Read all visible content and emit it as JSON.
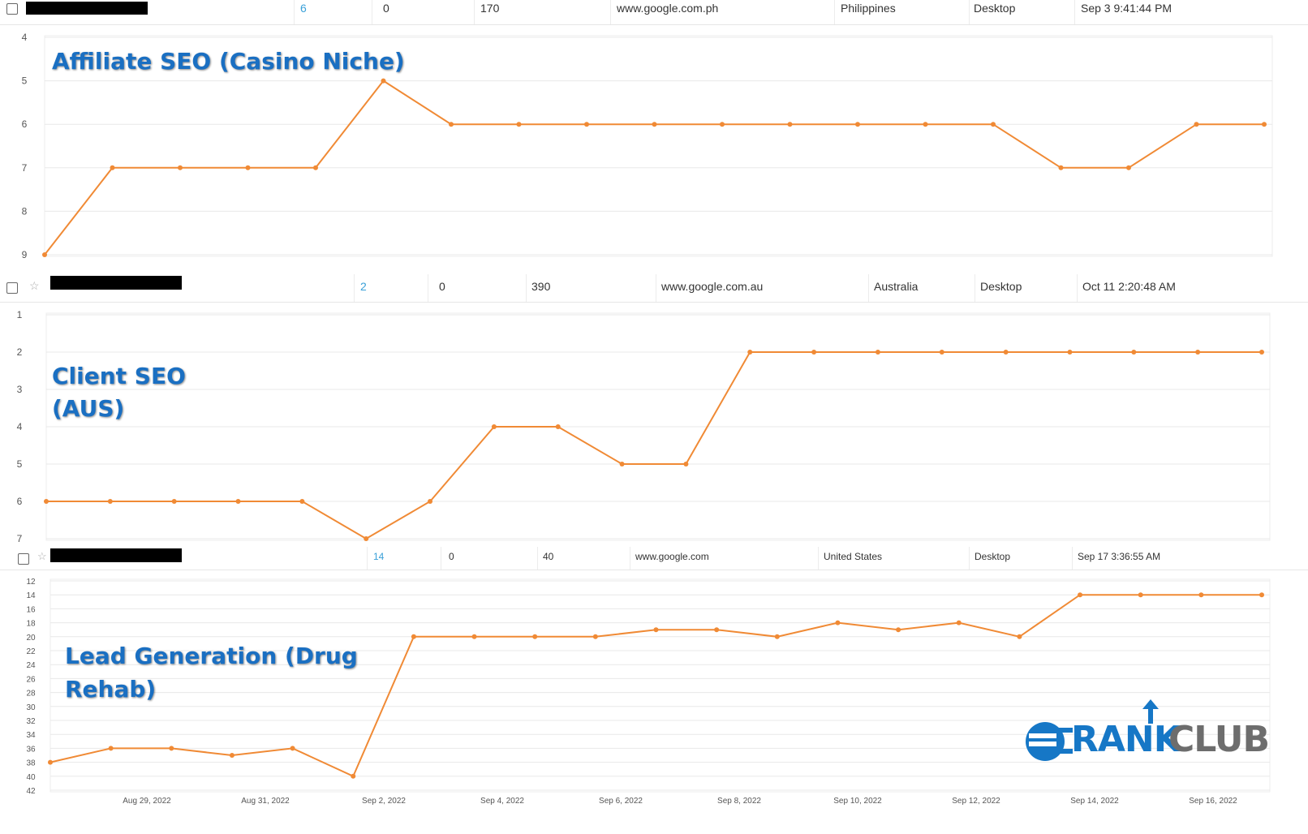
{
  "rows": [
    {
      "keyword_hidden": true,
      "rank": "6",
      "change": "0",
      "volume": "170",
      "engine": "www.google.com.ph",
      "country": "Philippines",
      "device": "Desktop",
      "updated": "Sep 3 9:41:44 PM"
    },
    {
      "keyword_hidden": true,
      "rank": "2",
      "change": "0",
      "volume": "390",
      "engine": "www.google.com.au",
      "country": "Australia",
      "device": "Desktop",
      "updated": "Oct 11 2:20:48 AM"
    },
    {
      "keyword_hidden": true,
      "rank": "14",
      "change": "0",
      "volume": "40",
      "engine": "www.google.com",
      "country": "United States",
      "device": "Desktop",
      "updated": "Sep 17 3:36:55 AM"
    }
  ],
  "overlay_titles": [
    {
      "lines": [
        "Affiliate SEO (Casino Niche)"
      ]
    },
    {
      "lines": [
        "Client SEO",
        "(AUS)"
      ]
    },
    {
      "lines": [
        "Lead Generation (Drug",
        "Rehab)"
      ]
    }
  ],
  "logo": {
    "part1": "RANK",
    "part2": "CLUB",
    "icon": "rankclub-logo-icon"
  },
  "colors": {
    "line": "#f08a35",
    "grid": "#e8e8e8",
    "title": "#1a6fc2",
    "link": "#3aa0d8"
  },
  "chart_data": [
    {
      "type": "line",
      "title": "Affiliate SEO (Casino Niche)",
      "ylim": [
        9,
        4
      ],
      "y_inverted": true,
      "yticks": [
        4,
        5,
        6,
        7,
        8,
        9
      ],
      "xlabels": [],
      "series": [
        {
          "values": [
            9,
            7,
            7,
            7,
            7,
            5,
            6,
            6,
            6,
            6,
            6,
            6,
            6,
            6,
            6,
            7,
            7,
            6,
            6
          ]
        }
      ],
      "grid": true
    },
    {
      "type": "line",
      "title": "Client SEO (AUS)",
      "ylim": [
        7,
        1
      ],
      "y_inverted": true,
      "yticks": [
        1,
        2,
        3,
        4,
        5,
        6,
        7
      ],
      "xlabels": [],
      "series": [
        {
          "values": [
            6,
            6,
            6,
            6,
            6,
            7,
            6,
            4,
            4,
            5,
            5,
            2,
            2,
            2,
            2,
            2,
            2,
            2,
            2,
            2
          ]
        }
      ],
      "grid": true
    },
    {
      "type": "line",
      "title": "Lead Generation (Drug Rehab)",
      "ylim": [
        42,
        12
      ],
      "y_inverted": true,
      "yticks": [
        12,
        14,
        16,
        18,
        20,
        22,
        24,
        26,
        28,
        30,
        32,
        34,
        36,
        38,
        40,
        42
      ],
      "xlabels": [
        "Aug 29, 2022",
        "Aug 31, 2022",
        "Sep 2, 2022",
        "Sep 4, 2022",
        "Sep 6, 2022",
        "Sep 8, 2022",
        "Sep 10, 2022",
        "Sep 12, 2022",
        "Sep 14, 2022",
        "Sep 16, 2022"
      ],
      "x_start": "Aug 28, 2022",
      "series": [
        {
          "values": [
            38,
            36,
            36,
            37,
            36,
            40,
            20,
            20,
            20,
            20,
            19,
            19,
            20,
            18,
            19,
            18,
            20,
            14,
            14,
            14,
            14
          ]
        }
      ],
      "grid": true
    }
  ]
}
